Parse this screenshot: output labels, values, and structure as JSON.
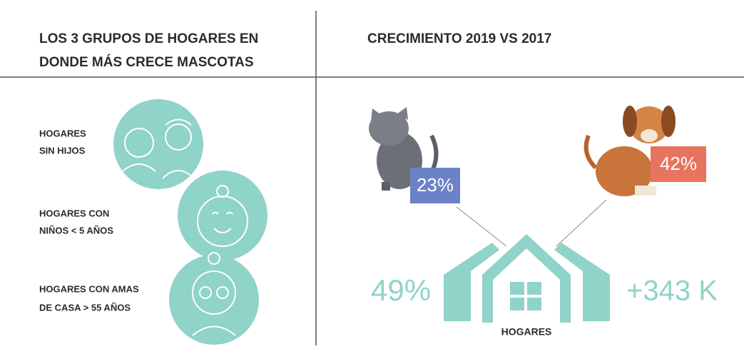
{
  "left": {
    "title": [
      "LOS 3 GRUPOS DE HOGARES EN",
      "DONDE MÁS CRECE MASCOTAS"
    ],
    "groups": [
      [
        "HOGARES",
        "SIN HIJOS"
      ],
      [
        "HOGARES CON",
        "NIÑOS < 5 AÑOS"
      ],
      [
        "HOGARES CON AMAS",
        "DE CASA > 55 AÑOS"
      ]
    ]
  },
  "right": {
    "title": "CRECIMIENTO 2019 VS 2017",
    "cat": "23%",
    "dog": "42%",
    "growth_percent": "49%",
    "growth_count": "+343 K",
    "house_label": "HOGARES"
  }
}
